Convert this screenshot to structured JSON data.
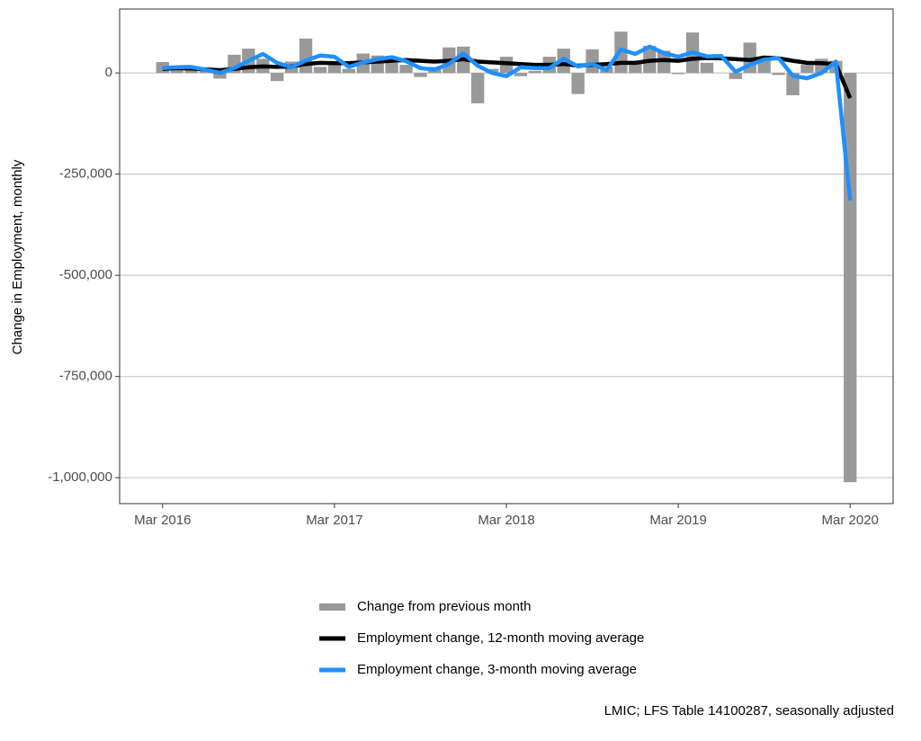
{
  "chart_data": {
    "type": "bar",
    "y_label": "Change in Employment, monthly",
    "caption": "LMIC; LFS Table 14100287, seasonally adjusted",
    "x": [
      "2016-03",
      "2016-04",
      "2016-05",
      "2016-06",
      "2016-07",
      "2016-08",
      "2016-09",
      "2016-10",
      "2016-11",
      "2016-12",
      "2017-01",
      "2017-02",
      "2017-03",
      "2017-04",
      "2017-05",
      "2017-06",
      "2017-07",
      "2017-08",
      "2017-09",
      "2017-10",
      "2017-11",
      "2017-12",
      "2018-01",
      "2018-02",
      "2018-03",
      "2018-04",
      "2018-05",
      "2018-06",
      "2018-07",
      "2018-08",
      "2018-09",
      "2018-10",
      "2018-11",
      "2018-12",
      "2019-01",
      "2019-02",
      "2019-03",
      "2019-04",
      "2019-05",
      "2019-06",
      "2019-07",
      "2019-08",
      "2019-09",
      "2019-10",
      "2019-11",
      "2019-12",
      "2020-01",
      "2020-02",
      "2020-03"
    ],
    "xlim": [
      "2015-12",
      "2020-06"
    ],
    "xticks": [
      {
        "value": "2016-03",
        "label": "Mar 2016"
      },
      {
        "value": "2017-03",
        "label": "Mar 2017"
      },
      {
        "value": "2018-03",
        "label": "Mar 2018"
      },
      {
        "value": "2019-03",
        "label": "Mar 2019"
      },
      {
        "value": "2020-03",
        "label": "Mar 2020"
      }
    ],
    "ylim": [
      -1064000,
      158000
    ],
    "yticks": [
      0,
      {
        "value": -250000,
        "label": "-250,000"
      },
      {
        "value": -500000,
        "label": "-500,000"
      },
      {
        "value": -750000,
        "label": "-750,000"
      },
      {
        "value": -1000000,
        "label": "-1,000,000"
      }
    ],
    "grid": true,
    "legend": "bottom",
    "series": [
      {
        "name": "Change from previous month",
        "type": "bar",
        "color": "#999999",
        "values": [
          27000,
          10000,
          8000,
          5000,
          -14000,
          45000,
          60000,
          35000,
          -20000,
          28000,
          85000,
          15000,
          20000,
          10000,
          48000,
          43000,
          25000,
          20000,
          -10000,
          15000,
          63000,
          65000,
          -75000,
          10000,
          40000,
          -8000,
          5000,
          40000,
          60000,
          -52000,
          58000,
          15000,
          102000,
          25000,
          67000,
          55000,
          -3000,
          100000,
          25000,
          0,
          -15000,
          75000,
          40000,
          -5000,
          -55000,
          20000,
          35000,
          30000,
          -1011000
        ]
      },
      {
        "name": "Employment change, 12-month moving average",
        "type": "line",
        "color": "#000000",
        "values": [
          10000,
          12000,
          11000,
          9000,
          7000,
          10000,
          14000,
          16000,
          15000,
          16000,
          22000,
          25000,
          24000,
          24000,
          26000,
          28000,
          30000,
          32000,
          30000,
          28000,
          30000,
          34000,
          28000,
          26000,
          24000,
          22000,
          20000,
          20000,
          22000,
          18000,
          20000,
          22000,
          25000,
          25000,
          30000,
          32000,
          30000,
          35000,
          37000,
          36000,
          34000,
          32000,
          38000,
          36000,
          30000,
          25000,
          24000,
          22000,
          -62000
        ]
      },
      {
        "name": "Employment change, 3-month moving average",
        "type": "line",
        "color": "#1e90ff",
        "values": [
          12000,
          14000,
          15000,
          8000,
          0,
          12000,
          30000,
          47000,
          25000,
          14000,
          31000,
          43000,
          40000,
          15000,
          26000,
          34000,
          39000,
          29000,
          12000,
          8000,
          23000,
          48000,
          18000,
          0,
          -8000,
          14000,
          12000,
          12000,
          35000,
          16000,
          22000,
          7000,
          58000,
          47000,
          65000,
          49000,
          40000,
          51000,
          41000,
          42000,
          3000,
          20000,
          33000,
          37000,
          -7000,
          -13000,
          0,
          28000,
          -315000
        ]
      }
    ]
  }
}
